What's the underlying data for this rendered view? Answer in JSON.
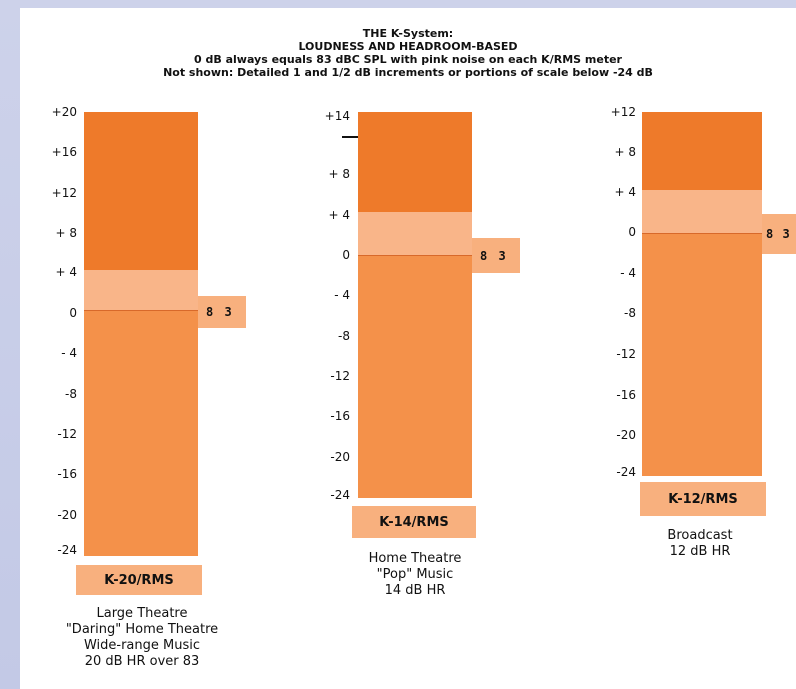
{
  "title": {
    "line1": "THE K-System:",
    "line2": "LOUDNESS AND HEADROOM-BASED",
    "line3": "0 dB always equals 83 dBC SPL with pink noise on each K/RMS meter",
    "line4": "Not shown: Detailed 1 and 1/2 dB increments or portions of scale below -24 dB"
  },
  "colors": {
    "upper": "#ee7a2a",
    "band": "#f9b589",
    "lower": "#f4914a",
    "label_bg": "#f8b07e"
  },
  "meters": [
    {
      "name": "K-20/RMS",
      "ref_label": "8 3",
      "headroom_db": 20,
      "ticks": [
        "+20",
        "+16",
        "+12",
        "+ 8",
        "+ 4",
        "0",
        "- 4",
        "-8",
        "-12",
        "-16",
        "-20",
        "-24"
      ],
      "caption": [
        "Large Theatre",
        "\"Daring\" Home Theatre",
        "Wide-range Music",
        "20 dB HR over 83"
      ]
    },
    {
      "name": "K-14/RMS",
      "ref_label": "8 3",
      "headroom_db": 14,
      "ticks": [
        "+14",
        "+ 8",
        "+ 4",
        "0",
        "- 4",
        "-8",
        "-12",
        "-16",
        "-20",
        "-24"
      ],
      "caption": [
        "Home Theatre",
        "\"Pop\" Music",
        "14 dB HR"
      ]
    },
    {
      "name": "K-12/RMS",
      "ref_label": "8 3",
      "headroom_db": 12,
      "ticks": [
        "+12",
        "+ 8",
        "+ 4",
        "0",
        "- 4",
        "-8",
        "-12",
        "-16",
        "-20",
        "-24"
      ],
      "caption": [
        "Broadcast",
        "12 dB HR"
      ]
    }
  ]
}
